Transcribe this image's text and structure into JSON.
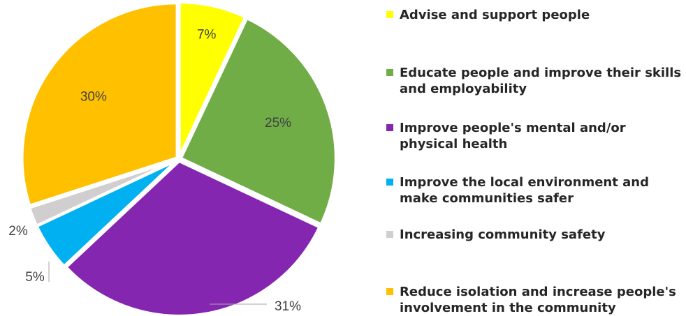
{
  "chart_data": {
    "type": "pie",
    "categories": [
      "Advise and support people",
      "Educate people and improve their skills and employability",
      "Improve people's mental and/or physical health",
      "Improve the local environment and make communities safer",
      "Increasing community safety",
      "Reduce isolation and increase people's involvement in the community"
    ],
    "values": [
      7,
      25,
      31,
      5,
      2,
      30
    ],
    "labels": [
      "7%",
      "25%",
      "31%",
      "5%",
      "2%",
      "30%"
    ],
    "colors": [
      "#FFFF00",
      "#70AD47",
      "#8526B1",
      "#00B0F0",
      "#D0CECE",
      "#FFC000"
    ],
    "legend_position": "right"
  }
}
